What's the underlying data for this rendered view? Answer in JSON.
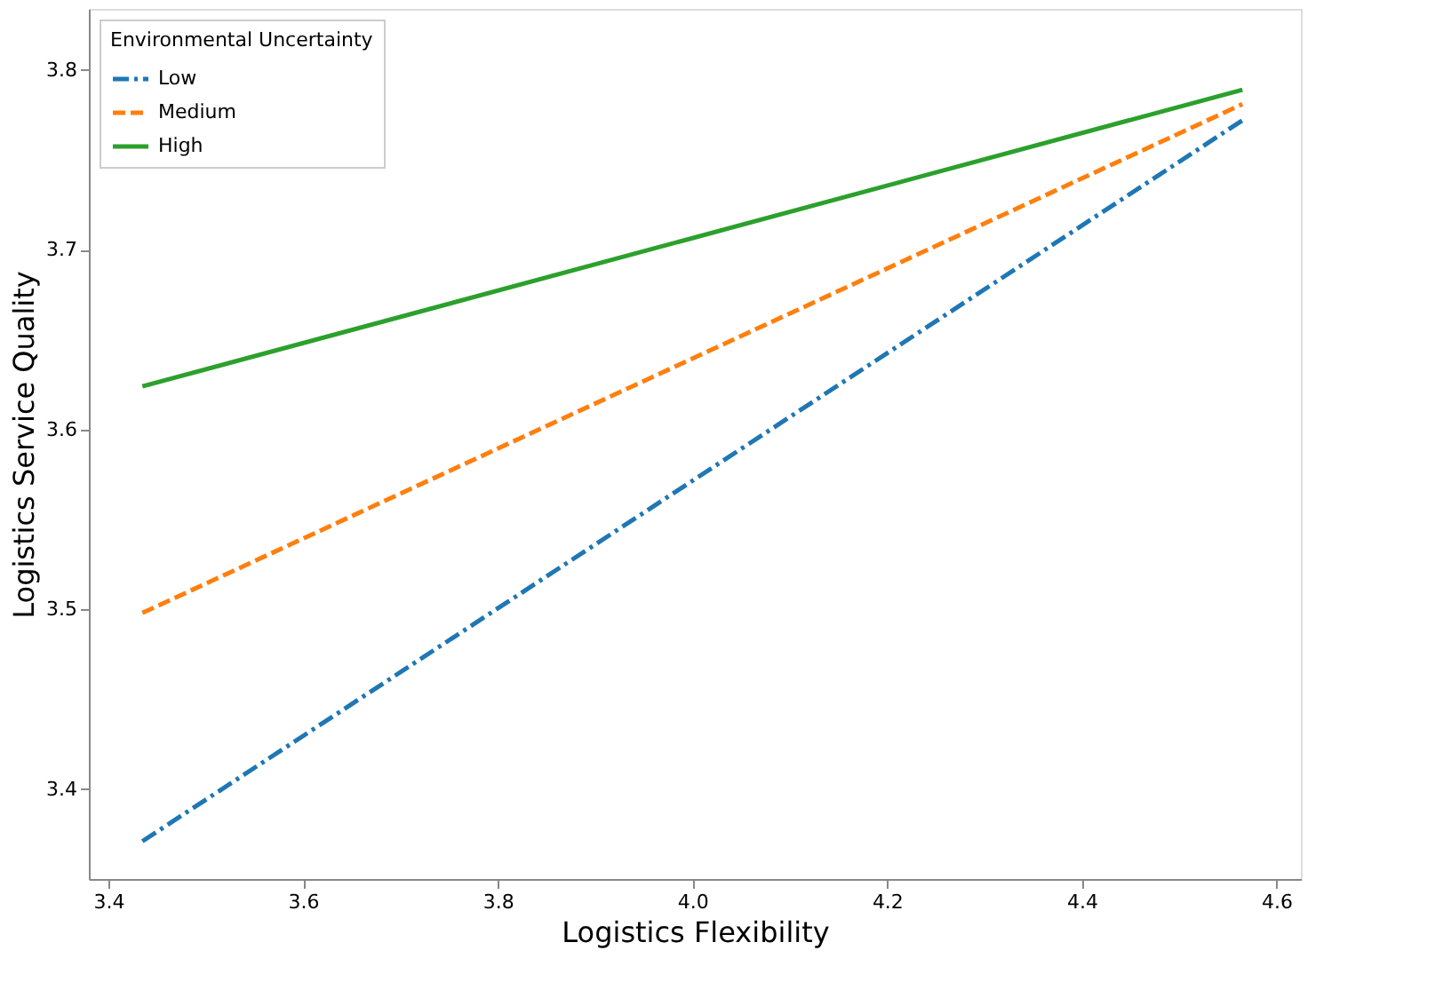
{
  "chart_data": {
    "type": "line",
    "xlabel": "Logistics Flexibility",
    "ylabel": "Logistics Service Quality",
    "legend_title": "Environmental Uncertainty",
    "legend": "top left",
    "grid": false,
    "marker": "none",
    "x": [
      3.435,
      4.565
    ],
    "xlim": [
      3.38,
      4.625
    ],
    "xticks": [
      3.4,
      3.6,
      3.8,
      {
        "value": 4,
        "label": "4.0"
      },
      4.2,
      4.4,
      4.6
    ],
    "ylim": [
      3.35,
      3.834
    ],
    "yticks": [
      3.4,
      3.5,
      3.6,
      3.7,
      3.8
    ],
    "series": [
      {
        "name": "Low",
        "color": "#1f77b4",
        "line_style": "dashdot",
        "values": [
          3.371,
          3.772
        ]
      },
      {
        "name": "Medium",
        "color": "#ff7f0e",
        "line_style": "dashed",
        "values": [
          3.498,
          3.781
        ]
      },
      {
        "name": "High",
        "color": "#2ca02c",
        "line_style": "solid",
        "values": [
          3.624,
          3.789
        ]
      }
    ]
  }
}
